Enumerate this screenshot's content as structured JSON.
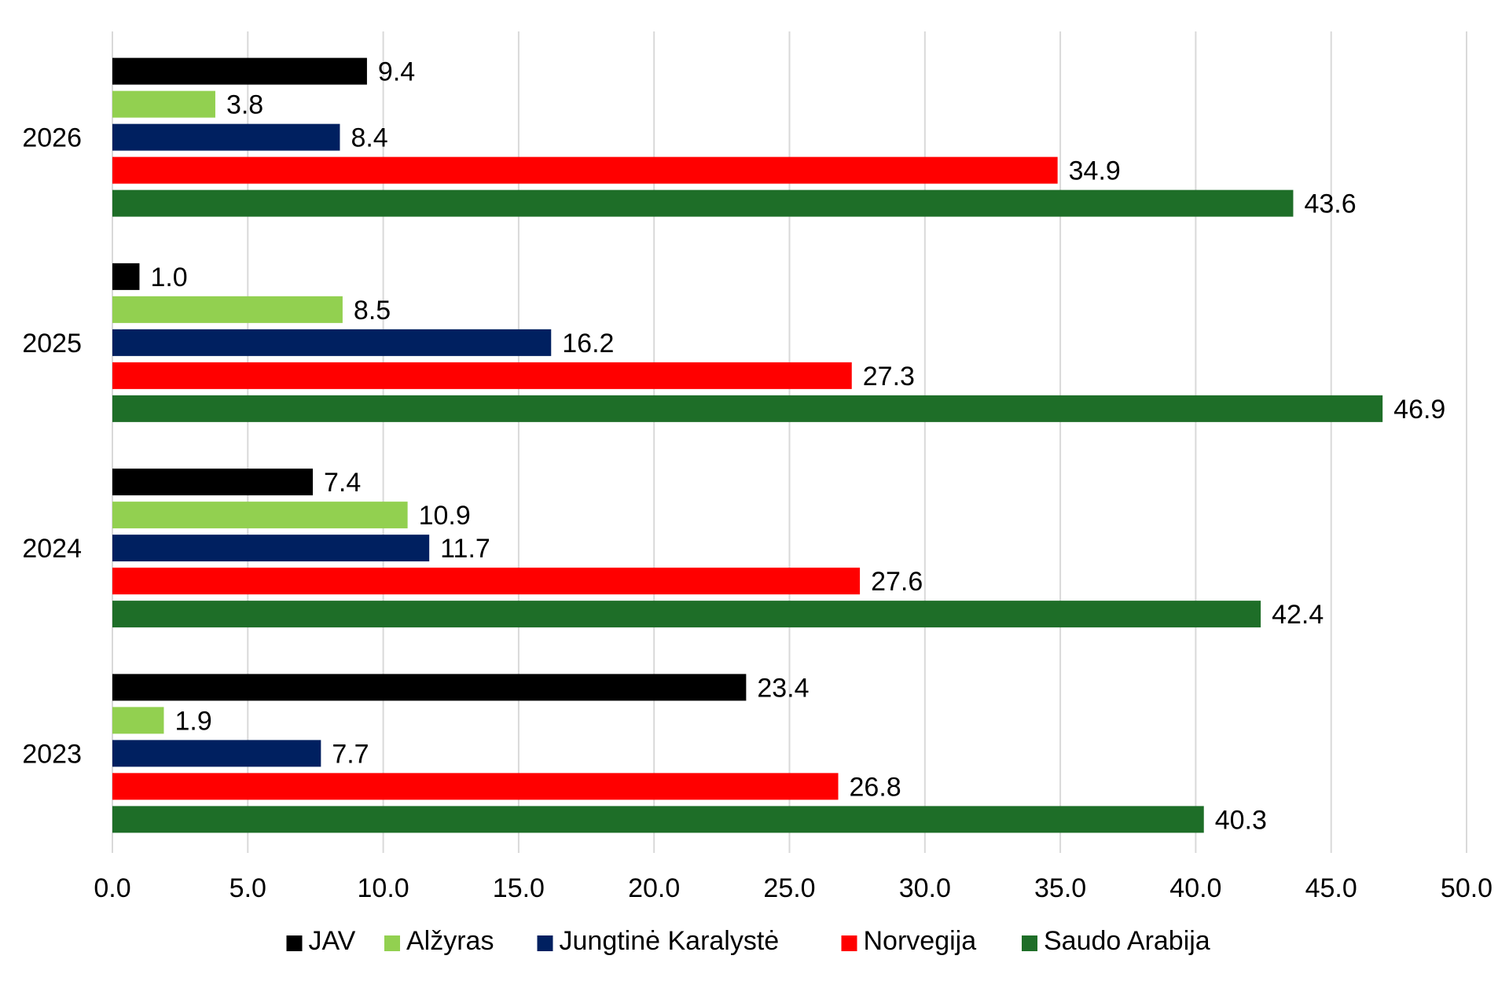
{
  "chart_data": {
    "type": "bar",
    "orientation": "horizontal",
    "categories": [
      "2026",
      "2025",
      "2024",
      "2023"
    ],
    "series": [
      {
        "name": "JAV",
        "color": "#000000",
        "values": [
          9.4,
          1.0,
          7.4,
          23.4
        ]
      },
      {
        "name": "Alžyras",
        "color": "#92d050",
        "values": [
          3.8,
          8.5,
          10.9,
          1.9
        ]
      },
      {
        "name": "Jungtinė Karalystė",
        "color": "#002060",
        "values": [
          8.4,
          16.2,
          11.7,
          7.7
        ]
      },
      {
        "name": "Norvegija",
        "color": "#ff0000",
        "values": [
          34.9,
          27.3,
          27.6,
          26.8
        ]
      },
      {
        "name": "Saudo Arabija",
        "color": "#1e6e28",
        "values": [
          43.6,
          46.9,
          42.4,
          40.3
        ]
      }
    ],
    "x_ticks": [
      "0.0",
      "5.0",
      "10.0",
      "15.0",
      "20.0",
      "25.0",
      "30.0",
      "35.0",
      "40.0",
      "45.0",
      "50.0"
    ],
    "xlim": [
      0,
      50
    ],
    "grid": "vertical",
    "legend": "bottom",
    "data_labels": true,
    "title": "",
    "xlabel": "",
    "ylabel": ""
  }
}
